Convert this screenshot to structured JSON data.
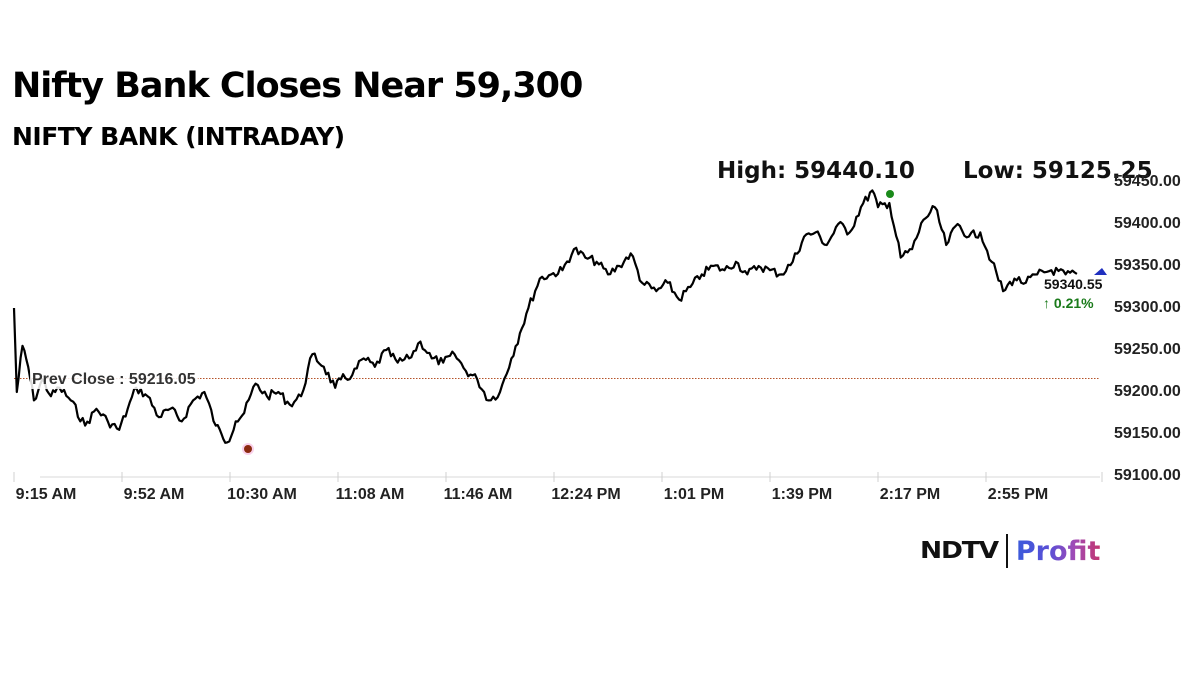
{
  "header": {
    "title": "Nifty Bank Closes Near 59,300",
    "subtitle": "NIFTY BANK (INTRADAY)",
    "high_label": "High: 59440.10",
    "low_label": "Low: 59125.25"
  },
  "annotations": {
    "prev_close_label": "Prev Close : 59216.05",
    "last_price": "59340.55",
    "change": "↑ 0.21%",
    "change_color": "#1a7a1a",
    "high_marker_color": "#1a8a1a",
    "low_marker_color": "#8b2a10",
    "last_marker_color": "#1f2fbf",
    "prev_close_line_color": "#b5532a"
  },
  "axes": {
    "y_ticks": [
      "59450.00",
      "59400.00",
      "59350.00",
      "59300.00",
      "59250.00",
      "59200.00",
      "59150.00",
      "59100.00"
    ],
    "x_ticks": [
      "9:15 AM",
      "9:52 AM",
      "10:30 AM",
      "11:08 AM",
      "11:46 AM",
      "12:24 PM",
      "1:01 PM",
      "1:39 PM",
      "2:17 PM",
      "2:55 PM"
    ]
  },
  "branding": {
    "ndtv": "NDTV",
    "profit": "Profit"
  },
  "chart_data": {
    "type": "line",
    "title": "Nifty Bank Closes Near 59,300",
    "subtitle": "NIFTY BANK (INTRADAY)",
    "xlabel": "",
    "ylabel": "",
    "ylim": [
      59100,
      59450
    ],
    "y_ticks": [
      59450,
      59400,
      59350,
      59300,
      59250,
      59200,
      59150,
      59100
    ],
    "x_ticks": [
      "9:15 AM",
      "9:52 AM",
      "10:30 AM",
      "11:08 AM",
      "11:46 AM",
      "12:24 PM",
      "1:01 PM",
      "1:39 PM",
      "2:17 PM",
      "2:55 PM"
    ],
    "grid": false,
    "legend": "none",
    "prev_close": 59216.05,
    "high": 59440.1,
    "low": 59125.25,
    "last": 59340.55,
    "change_pct": 0.21,
    "series": [
      {
        "name": "NIFTY BANK",
        "x": [
          "9:15",
          "9:16",
          "9:18",
          "9:20",
          "9:22",
          "9:25",
          "9:28",
          "9:31",
          "9:35",
          "9:40",
          "9:44",
          "9:48",
          "9:52",
          "9:55",
          "9:58",
          "10:02",
          "10:06",
          "10:10",
          "10:14",
          "10:18",
          "10:22",
          "10:26",
          "10:28",
          "10:30",
          "10:33",
          "10:36",
          "10:40",
          "10:44",
          "10:48",
          "10:52",
          "10:56",
          "11:00",
          "11:04",
          "11:08",
          "11:10",
          "11:14",
          "11:18",
          "11:22",
          "11:26",
          "11:30",
          "11:34",
          "11:38",
          "11:42",
          "11:46",
          "11:50",
          "11:54",
          "11:58",
          "12:02",
          "12:06",
          "12:10",
          "12:13",
          "12:16",
          "12:20",
          "12:24",
          "12:28",
          "12:32",
          "12:36",
          "12:40",
          "12:44",
          "12:48",
          "12:52",
          "12:56",
          "13:01",
          "13:05",
          "13:09",
          "13:13",
          "13:17",
          "13:21",
          "13:25",
          "13:29",
          "13:33",
          "13:37",
          "13:41",
          "13:45",
          "13:49",
          "13:53",
          "13:57",
          "14:01",
          "14:05",
          "14:09",
          "14:13",
          "14:17",
          "14:19",
          "14:23",
          "14:27",
          "14:31",
          "14:35",
          "14:39",
          "14:43",
          "14:47",
          "14:51",
          "14:55",
          "14:59",
          "15:03",
          "15:07",
          "15:11",
          "15:15",
          "15:20",
          "15:25",
          "15:29"
        ],
        "values": [
          59300,
          59200,
          59255,
          59230,
          59190,
          59215,
          59195,
          59205,
          59190,
          59160,
          59180,
          59165,
          59155,
          59180,
          59205,
          59195,
          59170,
          59180,
          59165,
          59190,
          59200,
          59160,
          59150,
          59140,
          59165,
          59175,
          59210,
          59195,
          59200,
          59185,
          59195,
          59245,
          59230,
          59205,
          59215,
          59220,
          59240,
          59230,
          59250,
          59235,
          59240,
          59260,
          59240,
          59235,
          59245,
          59225,
          59215,
          59190,
          59200,
          59240,
          59270,
          59300,
          59335,
          59340,
          59345,
          59370,
          59360,
          59355,
          59340,
          59350,
          59365,
          59330,
          59320,
          59330,
          59310,
          59325,
          59340,
          59350,
          59345,
          59355,
          59340,
          59350,
          59345,
          59340,
          59355,
          59385,
          59390,
          59375,
          59400,
          59390,
          59420,
          59440,
          59420,
          59425,
          59360,
          59370,
          59405,
          59420,
          59375,
          59400,
          59385,
          59390,
          59355,
          59320,
          59335,
          59330,
          59340,
          59345,
          59340,
          59340.55
        ]
      }
    ]
  }
}
